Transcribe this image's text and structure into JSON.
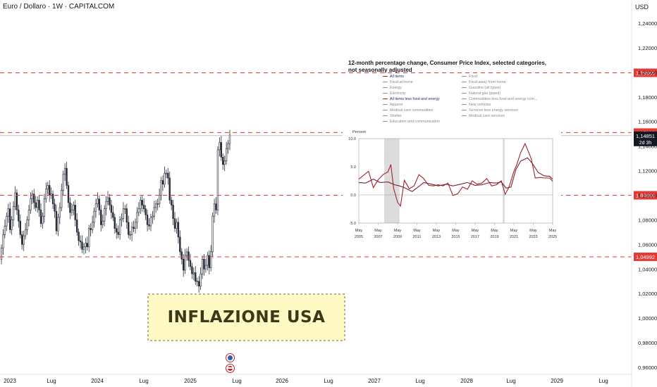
{
  "header": {
    "symbol": "Euro / Dollaro · 1W · CAPITALCOM",
    "currency": "USD"
  },
  "colors": {
    "bull": "#2a2e39",
    "bear": "#2a2e39",
    "level": "#e53935",
    "price": "#131722",
    "inset_line": "#a3222b"
  },
  "chart_data": [
    {
      "type": "candlestick",
      "title": "Euro / Dollaro · 1W · CAPITALCOM",
      "ylabel": "USD",
      "ylim": [
        0.955,
        1.2475
      ],
      "yticks": [
        "1,24000",
        "1,22000",
        "1,20000",
        "1,18000",
        "1,16000",
        "1,14000",
        "1,12000",
        "1,10000",
        "1,08000",
        "1,06000",
        "1,04000",
        "1,02000",
        "1,00000",
        "0,98000",
        "0,96000"
      ],
      "xticks": [
        "2023",
        "Lug",
        "2024",
        "Lug",
        "2025",
        "Lug",
        "2026",
        "Lug",
        "2027",
        "Lug",
        "2028",
        "Lug",
        "2029",
        "Lug"
      ],
      "closes": [
        1.057,
        1.068,
        1.075,
        1.083,
        1.089,
        1.072,
        1.08,
        1.091,
        1.102,
        1.088,
        1.079,
        1.068,
        1.06,
        1.067,
        1.072,
        1.08,
        1.088,
        1.097,
        1.101,
        1.094,
        1.09,
        1.096,
        1.088,
        1.077,
        1.083,
        1.097,
        1.105,
        1.108,
        1.1,
        1.101,
        1.093,
        1.087,
        1.071,
        1.082,
        1.09,
        1.104,
        1.117,
        1.122,
        1.108,
        1.094,
        1.086,
        1.088,
        1.092,
        1.08,
        1.07,
        1.063,
        1.062,
        1.056,
        1.058,
        1.061,
        1.058,
        1.073,
        1.072,
        1.078,
        1.087,
        1.093,
        1.097,
        1.088,
        1.076,
        1.079,
        1.089,
        1.095,
        1.098,
        1.092,
        1.086,
        1.082,
        1.073,
        1.07,
        1.068,
        1.08,
        1.081,
        1.089,
        1.089,
        1.078,
        1.068,
        1.068,
        1.074,
        1.073,
        1.078,
        1.086,
        1.089,
        1.096,
        1.092,
        1.089,
        1.084,
        1.076,
        1.075,
        1.082,
        1.083,
        1.09,
        1.093,
        1.093,
        1.1,
        1.112,
        1.109,
        1.118,
        1.118,
        1.114,
        1.096,
        1.092,
        1.081,
        1.073,
        1.078,
        1.066,
        1.054,
        1.048,
        1.039,
        1.051,
        1.054,
        1.047,
        1.042,
        1.036,
        1.037,
        1.03,
        1.03,
        1.026,
        1.036,
        1.048,
        1.04,
        1.043,
        1.051,
        1.041,
        1.054,
        1.083,
        1.093,
        1.088,
        1.137,
        1.143,
        1.131,
        1.125,
        1.128,
        1.138,
        1.142,
        1.149
      ],
      "levels": [
        {
          "value": 1.19965,
          "label": "1,19965"
        },
        {
          "value": 1.15102,
          "label": "1,15102"
        },
        {
          "value": 1.09999,
          "label": "1,09999"
        },
        {
          "value": 1.04992,
          "label": "1,04992"
        }
      ],
      "last_price": {
        "value": 1.14851,
        "label": "1,14851",
        "countdown": "2d 3h"
      },
      "annotation": "INFLAZIONE USA"
    },
    {
      "type": "line",
      "title": "12-month percentage change, Consumer Price Index, selected categories, not seasonally adjusted",
      "ylabel": "Percent",
      "ylim": [
        -5.0,
        10.0
      ],
      "yticks": [
        "10.0",
        "5.0",
        "0.0",
        "-5.0"
      ],
      "xticks": [
        {
          "m": "May",
          "y": "2005"
        },
        {
          "m": "May",
          "y": "2007"
        },
        {
          "m": "May",
          "y": "2009"
        },
        {
          "m": "May",
          "y": "2011"
        },
        {
          "m": "May",
          "y": "2013"
        },
        {
          "m": "May",
          "y": "2015"
        },
        {
          "m": "May",
          "y": "2017"
        },
        {
          "m": "May",
          "y": "2019"
        },
        {
          "m": "May",
          "y": "2021"
        },
        {
          "m": "May",
          "y": "2023"
        },
        {
          "m": "May",
          "y": "2025"
        }
      ],
      "legend": [
        "All items",
        "Food",
        "Food at home",
        "Food away from home",
        "Energy",
        "Gasoline (all types)",
        "Electricity",
        "Natural gas (piped)",
        "All items less food and energy",
        "Commodities less food and energy com...",
        "Apparel",
        "New vehicles",
        "Medical care commodities",
        "Services less energy services",
        "Shelter",
        "Medical care services",
        "Education and communication"
      ],
      "series": [
        {
          "name": "All items",
          "x": [
            2005.3,
            2005.8,
            2006.3,
            2006.8,
            2007.3,
            2007.8,
            2008.3,
            2008.6,
            2008.9,
            2009.3,
            2009.6,
            2010.0,
            2010.5,
            2011.0,
            2011.5,
            2012.0,
            2012.5,
            2013.0,
            2013.5,
            2014.0,
            2014.5,
            2015.0,
            2015.5,
            2016.0,
            2016.5,
            2017.0,
            2017.5,
            2018.0,
            2018.5,
            2019.0,
            2019.5,
            2020.0,
            2020.4,
            2020.8,
            2021.3,
            2021.6,
            2022.0,
            2022.45,
            2022.8,
            2023.1,
            2023.5,
            2024.0,
            2024.5,
            2025.0,
            2025.3
          ],
          "y": [
            2.8,
            3.5,
            4.2,
            1.3,
            2.7,
            3.6,
            4.1,
            5.4,
            1.1,
            -1.3,
            -2.0,
            2.6,
            1.1,
            1.6,
            3.6,
            2.9,
            1.7,
            1.6,
            1.8,
            1.6,
            2.1,
            -0.1,
            0.2,
            1.4,
            1.0,
            2.5,
            1.9,
            2.1,
            2.9,
            1.6,
            1.8,
            2.5,
            0.1,
            1.4,
            4.2,
            5.4,
            7.5,
            9.1,
            7.7,
            6.4,
            3.0,
            3.1,
            3.0,
            3.0,
            2.4
          ]
        },
        {
          "name": "All items less food and energy",
          "x": [
            2005.3,
            2006.0,
            2006.8,
            2007.5,
            2008.3,
            2009.0,
            2009.5,
            2010.0,
            2010.8,
            2011.5,
            2012.0,
            2012.8,
            2013.5,
            2014.3,
            2015.0,
            2015.8,
            2016.5,
            2017.3,
            2018.0,
            2018.8,
            2019.5,
            2020.0,
            2020.5,
            2021.0,
            2021.5,
            2022.0,
            2022.7,
            2023.2,
            2023.8,
            2024.4,
            2025.0,
            2025.3
          ],
          "y": [
            2.2,
            2.1,
            2.8,
            2.2,
            2.3,
            1.8,
            1.6,
            1.3,
            0.6,
            1.5,
            2.2,
            1.9,
            1.6,
            1.9,
            1.6,
            1.9,
            2.2,
            1.7,
            1.8,
            2.2,
            2.1,
            2.3,
            1.2,
            1.4,
            4.5,
            6.0,
            6.6,
            5.6,
            4.0,
            3.4,
            3.3,
            2.8
          ]
        }
      ],
      "recessions": [
        [
          2007.92,
          2009.5
        ],
        [
          2020.15,
          2020.35
        ]
      ]
    }
  ]
}
